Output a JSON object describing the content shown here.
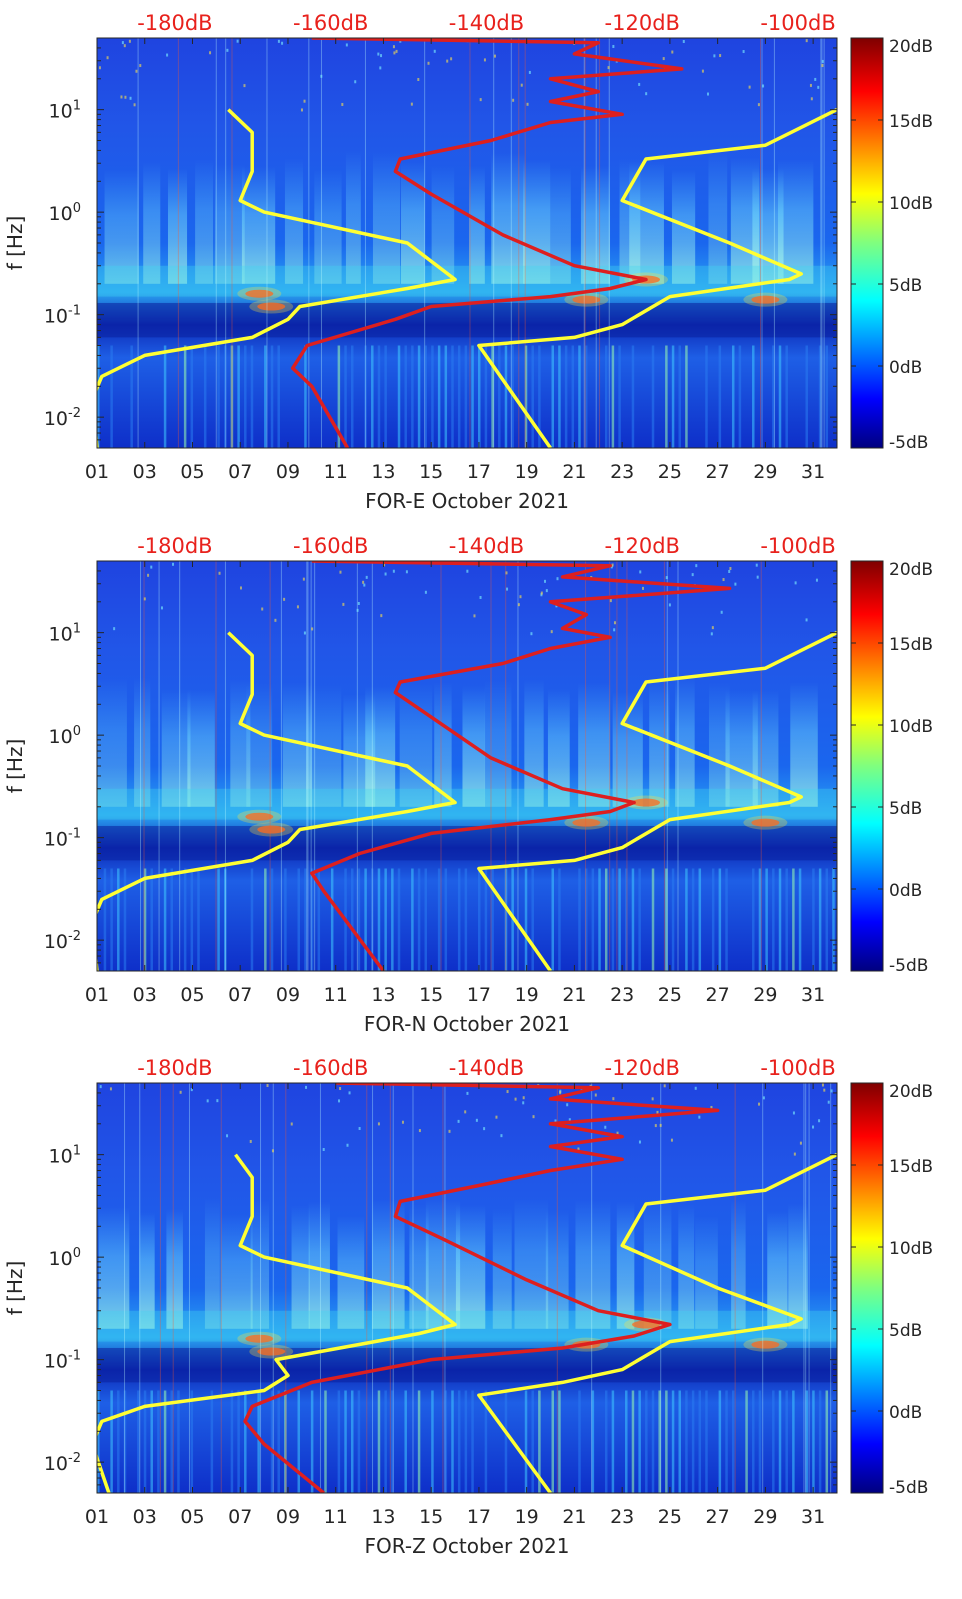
{
  "chart_data": [
    {
      "type": "heatmap",
      "title": "",
      "xlabel": "FOR-E October 2021",
      "ylabel": "f [Hz]",
      "x_ticks": [
        "01",
        "03",
        "05",
        "07",
        "09",
        "11",
        "13",
        "15",
        "17",
        "19",
        "21",
        "23",
        "25",
        "27",
        "29",
        "31"
      ],
      "x_range_days": [
        1,
        32
      ],
      "y_scale": "log",
      "y_range_hz": [
        0.005,
        50
      ],
      "y_ticks": [
        {
          "label_base": "10",
          "label_exp": "-2",
          "value": 0.01
        },
        {
          "label_base": "10",
          "label_exp": "-1",
          "value": 0.1
        },
        {
          "label_base": "10",
          "label_exp": "0",
          "value": 1
        },
        {
          "label_base": "10",
          "label_exp": "1",
          "value": 10
        }
      ],
      "top_axis_ticks": [
        "-180dB",
        "-160dB",
        "-140dB",
        "-120dB",
        "-100dB"
      ],
      "top_axis_range_db": [
        -190,
        -95
      ],
      "colorbar": {
        "colormap": "jet",
        "range_db": [
          -5,
          20
        ],
        "ticks": [
          "20dB",
          "15dB",
          "10dB",
          "5dB",
          "0dB",
          "-5dB"
        ]
      },
      "grid": false,
      "series": [
        {
          "color": "#ffff33",
          "points": [
            [
              1.0,
              0.005
            ],
            [
              0.8,
              0.015
            ],
            [
              1.2,
              0.025
            ],
            [
              3.0,
              0.04
            ],
            [
              7.5,
              0.06
            ],
            [
              9.0,
              0.09
            ],
            [
              9.5,
              0.12
            ],
            [
              14.0,
              0.18
            ],
            [
              16.0,
              0.22
            ],
            [
              14.0,
              0.5
            ],
            [
              8.0,
              1.0
            ],
            [
              7.0,
              1.3
            ],
            [
              7.5,
              2.5
            ],
            [
              7.5,
              6.0
            ],
            [
              6.5,
              10.0
            ]
          ]
        },
        {
          "color": "#ffff33",
          "points": [
            [
              20.0,
              0.005
            ],
            [
              17.0,
              0.05
            ],
            [
              21.0,
              0.06
            ],
            [
              23.0,
              0.08
            ],
            [
              25.0,
              0.15
            ],
            [
              30.0,
              0.22
            ],
            [
              30.5,
              0.25
            ],
            [
              27.5,
              0.5
            ],
            [
              23.0,
              1.3
            ],
            [
              24.0,
              3.3
            ],
            [
              29.0,
              4.5
            ],
            [
              32.0,
              10.0
            ]
          ]
        },
        {
          "color": "#dd1f1f",
          "points": [
            [
              11.5,
              0.005
            ],
            [
              10.0,
              0.02
            ],
            [
              9.2,
              0.03
            ],
            [
              9.8,
              0.05
            ],
            [
              13.5,
              0.09
            ],
            [
              15.0,
              0.12
            ],
            [
              20.0,
              0.15
            ],
            [
              22.5,
              0.18
            ],
            [
              24.0,
              0.22
            ],
            [
              21.0,
              0.3
            ],
            [
              18.0,
              0.6
            ],
            [
              15.0,
              1.5
            ],
            [
              13.5,
              2.5
            ],
            [
              13.7,
              3.3
            ],
            [
              17.5,
              5.0
            ],
            [
              20.0,
              7.5
            ],
            [
              23.0,
              9.0
            ],
            [
              20.0,
              12.0
            ],
            [
              22.0,
              15.0
            ],
            [
              20.0,
              20.0
            ],
            [
              25.5,
              25.0
            ],
            [
              21.0,
              35.0
            ],
            [
              22.0,
              45.0
            ],
            [
              10.0,
              50.0
            ]
          ]
        }
      ]
    },
    {
      "type": "heatmap",
      "title": "",
      "xlabel": "FOR-N October 2021",
      "ylabel": "f [Hz]",
      "x_ticks": [
        "01",
        "03",
        "05",
        "07",
        "09",
        "11",
        "13",
        "15",
        "17",
        "19",
        "21",
        "23",
        "25",
        "27",
        "29",
        "31"
      ],
      "x_range_days": [
        1,
        32
      ],
      "y_scale": "log",
      "y_range_hz": [
        0.005,
        50
      ],
      "y_ticks": [
        {
          "label_base": "10",
          "label_exp": "-2",
          "value": 0.01
        },
        {
          "label_base": "10",
          "label_exp": "-1",
          "value": 0.1
        },
        {
          "label_base": "10",
          "label_exp": "0",
          "value": 1
        },
        {
          "label_base": "10",
          "label_exp": "1",
          "value": 10
        }
      ],
      "top_axis_ticks": [
        "-180dB",
        "-160dB",
        "-140dB",
        "-120dB",
        "-100dB"
      ],
      "top_axis_range_db": [
        -190,
        -95
      ],
      "colorbar": {
        "colormap": "jet",
        "range_db": [
          -5,
          20
        ],
        "ticks": [
          "20dB",
          "15dB",
          "10dB",
          "5dB",
          "0dB",
          "-5dB"
        ]
      },
      "grid": false,
      "series": [
        {
          "color": "#ffff33",
          "points": [
            [
              1.0,
              0.005
            ],
            [
              0.8,
              0.015
            ],
            [
              1.2,
              0.025
            ],
            [
              3.0,
              0.04
            ],
            [
              7.5,
              0.06
            ],
            [
              9.0,
              0.09
            ],
            [
              9.5,
              0.12
            ],
            [
              14.0,
              0.18
            ],
            [
              16.0,
              0.22
            ],
            [
              14.0,
              0.5
            ],
            [
              8.0,
              1.0
            ],
            [
              7.0,
              1.3
            ],
            [
              7.5,
              2.5
            ],
            [
              7.5,
              6.0
            ],
            [
              6.5,
              10.0
            ]
          ]
        },
        {
          "color": "#ffff33",
          "points": [
            [
              20.0,
              0.005
            ],
            [
              17.0,
              0.05
            ],
            [
              21.0,
              0.06
            ],
            [
              23.0,
              0.08
            ],
            [
              25.0,
              0.15
            ],
            [
              30.0,
              0.22
            ],
            [
              30.5,
              0.25
            ],
            [
              27.5,
              0.5
            ],
            [
              23.0,
              1.3
            ],
            [
              24.0,
              3.3
            ],
            [
              29.0,
              4.5
            ],
            [
              32.0,
              10.0
            ]
          ]
        },
        {
          "color": "#dd1f1f",
          "points": [
            [
              13.0,
              0.005
            ],
            [
              10.5,
              0.03
            ],
            [
              10.0,
              0.045
            ],
            [
              12.0,
              0.07
            ],
            [
              15.0,
              0.11
            ],
            [
              20.0,
              0.15
            ],
            [
              22.5,
              0.18
            ],
            [
              23.5,
              0.22
            ],
            [
              20.5,
              0.3
            ],
            [
              17.5,
              0.6
            ],
            [
              15.0,
              1.5
            ],
            [
              13.5,
              2.6
            ],
            [
              13.7,
              3.3
            ],
            [
              18.0,
              5.0
            ],
            [
              20.0,
              7.0
            ],
            [
              22.5,
              9.0
            ],
            [
              20.5,
              11.0
            ],
            [
              21.5,
              15.0
            ],
            [
              20.0,
              20.0
            ],
            [
              27.5,
              27.0
            ],
            [
              20.5,
              35.0
            ],
            [
              22.5,
              45.0
            ],
            [
              10.0,
              50.0
            ]
          ]
        }
      ]
    },
    {
      "type": "heatmap",
      "title": "",
      "xlabel": "FOR-Z October 2021",
      "ylabel": "f [Hz]",
      "x_ticks": [
        "01",
        "03",
        "05",
        "07",
        "09",
        "11",
        "13",
        "15",
        "17",
        "19",
        "21",
        "23",
        "25",
        "27",
        "29",
        "31"
      ],
      "x_range_days": [
        1,
        32
      ],
      "y_scale": "log",
      "y_range_hz": [
        0.005,
        50
      ],
      "y_ticks": [
        {
          "label_base": "10",
          "label_exp": "-2",
          "value": 0.01
        },
        {
          "label_base": "10",
          "label_exp": "-1",
          "value": 0.1
        },
        {
          "label_base": "10",
          "label_exp": "0",
          "value": 1
        },
        {
          "label_base": "10",
          "label_exp": "1",
          "value": 10
        }
      ],
      "top_axis_ticks": [
        "-180dB",
        "-160dB",
        "-140dB",
        "-120dB",
        "-100dB"
      ],
      "top_axis_range_db": [
        -190,
        -95
      ],
      "colorbar": {
        "colormap": "jet",
        "range_db": [
          -5,
          20
        ],
        "ticks": [
          "20dB",
          "15dB",
          "10dB",
          "5dB",
          "0dB",
          "-5dB"
        ]
      },
      "grid": false,
      "series": [
        {
          "color": "#ffff33",
          "points": [
            [
              1.5,
              0.005
            ],
            [
              0.8,
              0.015
            ],
            [
              1.2,
              0.025
            ],
            [
              3.0,
              0.035
            ],
            [
              8.0,
              0.05
            ],
            [
              9.0,
              0.07
            ],
            [
              8.5,
              0.1
            ],
            [
              14.5,
              0.18
            ],
            [
              16.0,
              0.22
            ],
            [
              14.0,
              0.5
            ],
            [
              8.0,
              1.0
            ],
            [
              7.0,
              1.3
            ],
            [
              7.5,
              2.5
            ],
            [
              7.5,
              6.0
            ],
            [
              6.8,
              10.0
            ]
          ]
        },
        {
          "color": "#ffff33",
          "points": [
            [
              20.0,
              0.005
            ],
            [
              17.0,
              0.045
            ],
            [
              20.5,
              0.06
            ],
            [
              23.0,
              0.08
            ],
            [
              25.0,
              0.15
            ],
            [
              30.0,
              0.22
            ],
            [
              30.5,
              0.25
            ],
            [
              27.0,
              0.5
            ],
            [
              23.0,
              1.3
            ],
            [
              24.0,
              3.3
            ],
            [
              29.0,
              4.5
            ],
            [
              32.0,
              10.0
            ]
          ]
        },
        {
          "color": "#dd1f1f",
          "points": [
            [
              10.5,
              0.005
            ],
            [
              8.0,
              0.015
            ],
            [
              7.2,
              0.025
            ],
            [
              7.5,
              0.035
            ],
            [
              10.0,
              0.06
            ],
            [
              15.0,
              0.1
            ],
            [
              20.5,
              0.13
            ],
            [
              23.5,
              0.17
            ],
            [
              25.0,
              0.22
            ],
            [
              22.0,
              0.3
            ],
            [
              19.0,
              0.6
            ],
            [
              15.5,
              1.5
            ],
            [
              13.5,
              2.5
            ],
            [
              13.7,
              3.5
            ],
            [
              17.0,
              5.0
            ],
            [
              20.0,
              7.0
            ],
            [
              23.0,
              9.0
            ],
            [
              20.0,
              12.0
            ],
            [
              23.0,
              15.0
            ],
            [
              20.0,
              20.0
            ],
            [
              27.0,
              27.0
            ],
            [
              20.0,
              35.0
            ],
            [
              22.0,
              45.0
            ],
            [
              11.0,
              50.0
            ]
          ]
        }
      ]
    }
  ]
}
